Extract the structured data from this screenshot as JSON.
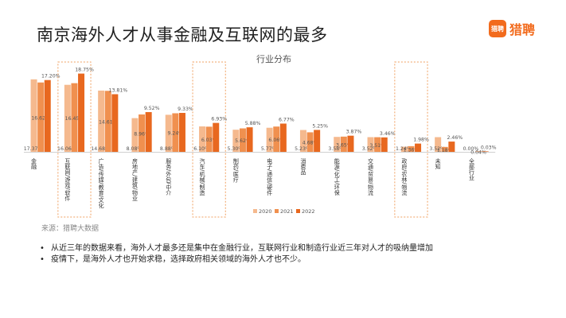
{
  "title": "南京海外人才从事金融及互联网的最多",
  "logo": {
    "mark": "猎聘",
    "text": "猎聘"
  },
  "source": "来源：猎聘大数据",
  "notes": [
    "从近三年的数据来看，海外人才最多还是集中在金融行业，互联网行业和制造行业近三年对人才的吸纳量增加",
    "疫情下，是海外人才也开始求稳，选择政府相关领域的海外人才也不少。"
  ],
  "colors": {
    "2020": "#f5b98e",
    "2021": "#f0904f",
    "2022": "#e8681f",
    "highlight_box": "#f0a060"
  },
  "chart_data": {
    "type": "bar",
    "title": "行业分布",
    "categories": [
      "金融",
      "互联网/游戏/软件",
      "广告/传媒/教育/文化",
      "房地产/建筑/物业",
      "服务/外包/中介",
      "汽车/机械/制造",
      "制药/医疗",
      "电子/通信/硬件",
      "消费品",
      "能源/化工/环保",
      "交通/贸易/物流",
      "政府/农林/物流",
      "未知",
      "全部行业"
    ],
    "series": [
      {
        "name": "2020",
        "values": [
          17.37,
          16.06,
          14.68,
          8.08,
          8.88,
          6.1,
          5.3,
          5.77,
          5.23,
          3.58,
          3.52,
          1.24,
          3.52,
          0.0
        ],
        "labels": [
          "17.37%",
          "16.06%",
          "14.68%",
          "8.08%",
          "8.88%",
          "6.10%",
          "5.30%",
          "5.77%",
          "5.23%",
          "3.58%",
          "3.52%",
          "1.24%",
          "3.52%",
          "0.00%"
        ]
      },
      {
        "name": "2021",
        "values": [
          16.62,
          16.45,
          14.61,
          8.96,
          9.24,
          6.03,
          5.62,
          6.06,
          4.68,
          3.65,
          3.51,
          1.36,
          1.18,
          0.04
        ],
        "labels": [
          "16.62%",
          "16.45%",
          "14.61%",
          "8.96%",
          "9.24%",
          "6.03%",
          "5.62%",
          "6.06%",
          "4.68%",
          "3.65%",
          "3.51%",
          "1.36%",
          "1.18%",
          "0.04%"
        ]
      },
      {
        "name": "2022",
        "values": [
          17.2,
          18.75,
          13.81,
          9.52,
          9.33,
          6.93,
          5.88,
          6.77,
          5.25,
          3.87,
          3.46,
          1.98,
          2.46,
          0.03
        ],
        "labels": [
          "17.20%",
          "18.75%",
          "13.81%",
          "9.52%",
          "9.33%",
          "6.93%",
          "5.88%",
          "6.77%",
          "5.25%",
          "3.87%",
          "3.46%",
          "1.98%",
          "2.46%",
          "0.03%"
        ]
      }
    ],
    "highlighted_categories": [
      "互联网/游戏/软件",
      "汽车/机械/制造",
      "政府/农林/物流"
    ],
    "ylim": [
      0,
      20
    ],
    "legend_position": "bottom",
    "grid": false
  }
}
